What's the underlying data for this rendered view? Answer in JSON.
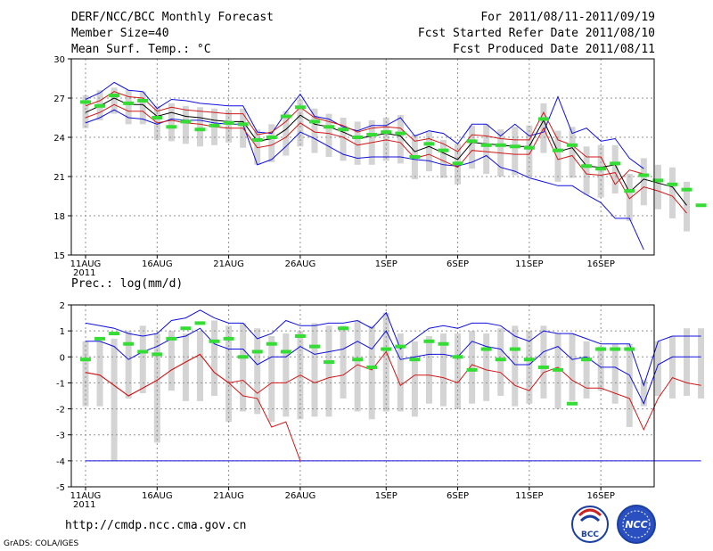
{
  "header": {
    "title": "DERF/NCC/BCC Monthly Forecast",
    "member_size": "Member Size=40",
    "variable": "Mean Surf. Temp.: °C",
    "period": "For 2011/08/11-2011/09/19",
    "start_date": "Fcst Started Refer Date 2011/08/10",
    "produced_date": "Fcst Produced Date 2011/08/11"
  },
  "colors": {
    "range_bar": "#d4d4d4",
    "ensemble_mean": "#000000",
    "spread": "#d01818",
    "extreme": "#1010dd",
    "observed": "#33dd33",
    "grid": "#909090",
    "axis": "#000000"
  },
  "footer": {
    "url": "http://cmdp.ncc.cma.gov.cn",
    "credit": "GrADS: COLA/IGES",
    "logo_bcc": "BCC",
    "logo_ncc": "NCC"
  },
  "chart_data": [
    {
      "type": "line",
      "title": "Mean Surf. Temp.: °C",
      "x_tick_labels": [
        "11AUG",
        "16AUG",
        "21AUG",
        "26AUG",
        "1SEP",
        "6SEP",
        "11SEP",
        "16SEP"
      ],
      "x_tick_sublabel": "2011",
      "ylim": [
        15,
        30
      ],
      "yticks": [
        15,
        18,
        21,
        24,
        27,
        30
      ],
      "grid": true,
      "series": [
        {
          "name": "max",
          "values": [
            25.1,
            25.5,
            26.1,
            25.5,
            25.4,
            25.0,
            25.4,
            25.3,
            25.3,
            25.1,
            25.0,
            25.0,
            21.9,
            22.3,
            23.3,
            24.4,
            23.9,
            23.3,
            22.7,
            22.4,
            22.5,
            22.5,
            22.5,
            22.3,
            22.2,
            21.9,
            21.8,
            22.1,
            22.6,
            21.7,
            21.4,
            20.9,
            20.6,
            20.3,
            20.3,
            19.6,
            19.0,
            17.8,
            17.8,
            15.4
          ]
        },
        {
          "name": "upper",
          "values": [
            26.9,
            27.4,
            28.2,
            27.6,
            27.5,
            26.2,
            26.9,
            26.8,
            26.6,
            26.5,
            26.4,
            26.4,
            24.4,
            24.3,
            25.9,
            27.3,
            25.6,
            25.4,
            24.8,
            24.5,
            24.9,
            24.9,
            25.5,
            24.1,
            24.5,
            24.3,
            23.5,
            25.0,
            25.0,
            24.1,
            25.0,
            24.1,
            24.4,
            27.1,
            24.3,
            24.7,
            23.7,
            23.9,
            22.4,
            21.6
          ]
        },
        {
          "name": "p_high",
          "values": [
            26.4,
            26.8,
            27.5,
            27.1,
            27.0,
            26.0,
            26.3,
            26.1,
            26.0,
            25.9,
            25.8,
            25.8,
            24.2,
            24.4,
            25.2,
            26.3,
            25.5,
            25.2,
            24.9,
            24.4,
            24.7,
            24.8,
            24.7,
            23.7,
            23.9,
            23.5,
            22.9,
            24.2,
            24.1,
            23.9,
            23.8,
            23.8,
            25.9,
            23.8,
            23.4,
            22.5,
            22.5,
            20.4,
            21.5,
            21.2
          ]
        },
        {
          "name": "mean",
          "values": [
            25.9,
            26.4,
            27.0,
            26.5,
            26.5,
            25.6,
            25.9,
            25.6,
            25.5,
            25.3,
            25.2,
            25.2,
            23.7,
            23.9,
            24.6,
            25.7,
            25.0,
            24.8,
            24.4,
            23.9,
            24.1,
            24.3,
            24.1,
            22.9,
            23.3,
            22.8,
            22.3,
            23.6,
            23.5,
            23.4,
            23.3,
            23.3,
            25.3,
            22.9,
            23.2,
            21.8,
            21.7,
            21.9,
            19.8,
            20.8,
            20.5,
            20.2,
            18.8
          ]
        },
        {
          "name": "p_low",
          "values": [
            25.5,
            25.9,
            26.5,
            26.0,
            26.0,
            25.1,
            25.3,
            25.1,
            25.0,
            24.8,
            24.7,
            24.7,
            23.2,
            23.4,
            24.0,
            25.1,
            24.4,
            24.3,
            24.0,
            23.4,
            23.6,
            23.8,
            23.6,
            22.4,
            22.7,
            22.2,
            21.7,
            23.0,
            22.9,
            22.8,
            22.7,
            22.7,
            24.7,
            22.3,
            22.6,
            21.2,
            21.1,
            21.3,
            19.3,
            20.2,
            19.9,
            19.5,
            18.2
          ]
        },
        {
          "name": "observed",
          "values": [
            26.7,
            26.4,
            27.2,
            26.6,
            26.8,
            25.5,
            24.8,
            25.2,
            24.6,
            24.9,
            25.1,
            25.0,
            23.8,
            24.0,
            25.6,
            26.3,
            25.2,
            24.8,
            24.6,
            24.0,
            24.2,
            24.4,
            24.3,
            22.5,
            23.5,
            23.0,
            22.0,
            23.7,
            23.4,
            23.4,
            23.3,
            23.2,
            25.4,
            23.0,
            23.4,
            21.8,
            21.6,
            22.0,
            19.9,
            21.1,
            20.7,
            20.4,
            20.0,
            18.8
          ]
        },
        {
          "name": "bar_max",
          "values": [
            27.2,
            27.6,
            27.8,
            27.6,
            27.5,
            26.4,
            26.6,
            26.4,
            26.3,
            26.2,
            26.1,
            26.2,
            24.6,
            25.0,
            26.0,
            26.9,
            26.2,
            25.8,
            25.5,
            25.2,
            25.3,
            25.5,
            25.7,
            24.2,
            24.4,
            23.8,
            23.5,
            24.9,
            25.0,
            24.6,
            24.8,
            24.9,
            26.6,
            24.5,
            24.8,
            23.3,
            23.4,
            23.4,
            21.2,
            22.4,
            21.9,
            21.7,
            20.6
          ]
        },
        {
          "name": "bar_min",
          "values": [
            24.7,
            25.3,
            25.8,
            25.0,
            25.0,
            23.8,
            23.7,
            23.5,
            23.3,
            23.4,
            23.6,
            23.2,
            21.9,
            22.1,
            22.6,
            23.3,
            22.8,
            22.5,
            22.2,
            21.9,
            21.9,
            22.2,
            22.0,
            20.8,
            21.4,
            20.9,
            20.4,
            21.6,
            21.2,
            21.0,
            21.1,
            21.0,
            22.8,
            20.6,
            20.9,
            19.6,
            19.4,
            19.7,
            17.6,
            18.8,
            18.5,
            17.8,
            16.8
          ]
        }
      ]
    },
    {
      "type": "line",
      "title": "Prec.: log(mm/d)",
      "x_tick_labels": [
        "11AUG",
        "16AUG",
        "21AUG",
        "26AUG",
        "1SEP",
        "6SEP",
        "11SEP",
        "16SEP"
      ],
      "x_tick_sublabel": "2011",
      "ylim": [
        -5,
        2
      ],
      "yticks": [
        -5,
        -4,
        -3,
        -2,
        -1,
        0,
        1,
        2
      ],
      "grid": true,
      "series": [
        {
          "name": "max",
          "values": [
            1.3,
            1.2,
            1.1,
            0.9,
            0.8,
            0.9,
            1.4,
            1.5,
            1.8,
            1.5,
            1.3,
            1.3,
            0.7,
            0.9,
            1.4,
            1.2,
            1.2,
            1.3,
            1.3,
            1.4,
            1.1,
            1.7,
            0.3,
            0.7,
            1.1,
            1.2,
            1.1,
            1.3,
            1.3,
            1.2,
            0.8,
            0.6,
            1.0,
            0.9,
            0.9,
            0.7,
            0.5,
            0.5,
            0.5,
            -1.1,
            0.6,
            0.8,
            0.8,
            0.8
          ]
        },
        {
          "name": "upper",
          "values": [
            0.6,
            0.6,
            0.4,
            -0.1,
            0.2,
            0.4,
            0.7,
            0.8,
            1.1,
            0.5,
            0.3,
            0.3,
            -0.3,
            0.0,
            0.0,
            0.4,
            0.1,
            0.2,
            0.3,
            0.6,
            0.3,
            1.0,
            -0.1,
            0.0,
            0.1,
            0.1,
            0.0,
            0.6,
            0.4,
            0.3,
            -0.3,
            -0.3,
            0.2,
            0.4,
            -0.1,
            0.0,
            -0.4,
            -0.4,
            -0.7,
            -1.8,
            -0.3,
            0.0,
            0.0,
            0.0
          ]
        },
        {
          "name": "p_low",
          "values": [
            -0.6,
            -0.7,
            -1.1,
            -1.5,
            -1.2,
            -0.9,
            -0.5,
            -0.2,
            0.1,
            -0.6,
            -1.0,
            -0.9,
            -1.4,
            -1.0,
            -1.0,
            -0.7,
            -1.0,
            -0.8,
            -0.7,
            -0.3,
            -0.5,
            0.2,
            -1.1,
            -0.7,
            -0.7,
            -0.8,
            -1.0,
            -0.3,
            -0.5,
            -0.6,
            -1.1,
            -1.3,
            -0.6,
            -0.4,
            -0.9,
            -1.2,
            -1.2,
            -1.4,
            -1.6,
            -2.8,
            -1.6,
            -0.8,
            -1.0,
            -1.1
          ]
        },
        {
          "name": "min",
          "values": [
            -4.0,
            -4.0,
            -4.0,
            -4.0,
            -4.0,
            -4.0,
            -4.0,
            -4.0,
            -4.0,
            -4.0,
            -4.0,
            -4.0,
            -4.0,
            -4.0,
            -4.0,
            -4.0,
            -4.0,
            -4.0,
            -4.0,
            -4.0,
            -4.0,
            -4.0,
            -4.0,
            -4.0,
            -4.0,
            -4.0,
            -4.0,
            -4.0,
            -4.0,
            -4.0,
            -4.0,
            -4.0,
            -4.0,
            -4.0,
            -4.0,
            -4.0,
            -4.0,
            -4.0,
            -4.0,
            -4.0,
            -4.0,
            -4.0,
            -4.0,
            -4.0
          ]
        },
        {
          "name": "lowest_red",
          "values": [
            -0.6,
            -0.7,
            -1.1,
            -1.5,
            -1.2,
            -0.9,
            -0.5,
            -0.2,
            0.1,
            -0.6,
            -1.0,
            -1.5,
            -1.6,
            -2.7,
            -2.5,
            -4.0
          ]
        },
        {
          "name": "observed",
          "values": [
            -0.1,
            0.7,
            0.9,
            0.5,
            0.2,
            0.1,
            0.7,
            1.1,
            1.3,
            0.6,
            0.7,
            0.0,
            0.2,
            0.5,
            0.2,
            0.8,
            0.4,
            -0.2,
            1.1,
            -0.1,
            -0.4,
            0.3,
            0.4,
            -0.1,
            0.6,
            0.5,
            0.0,
            -0.5,
            0.3,
            -0.1,
            0.3,
            -0.1,
            -0.4,
            -0.5,
            -1.8,
            -0.1,
            0.3,
            0.3,
            0.3
          ]
        },
        {
          "name": "bar_max",
          "values": [
            0.6,
            0.6,
            0.7,
            1.0,
            1.2,
            0.9,
            1.0,
            0.9,
            1.0,
            1.4,
            1.2,
            1.3,
            1.1,
            0.8,
            0.9,
            1.0,
            1.3,
            1.2,
            1.2,
            1.4,
            1.2,
            1.7,
            0.9,
            0.6,
            0.8,
            0.9,
            0.9,
            1.0,
            0.9,
            1.1,
            1.2,
            1.0,
            1.2,
            0.9,
            0.9,
            0.6,
            0.4,
            0.5,
            0.5,
            -0.9,
            0.6,
            0.8,
            1.1,
            1.1
          ]
        },
        {
          "name": "bar_min",
          "values": [
            -1.9,
            -1.9,
            -4.0,
            -1.6,
            -1.4,
            -3.3,
            -1.3,
            -1.7,
            -1.7,
            -1.5,
            -2.5,
            -2.1,
            -2.2,
            -2.5,
            -2.3,
            -2.4,
            -2.3,
            -2.3,
            -1.6,
            -2.1,
            -2.4,
            -2.1,
            -2.1,
            -2.3,
            -1.8,
            -1.9,
            -2.0,
            -1.8,
            -1.7,
            -1.5,
            -1.9,
            -1.8,
            -1.6,
            -2.0,
            -1.7,
            -1.6,
            -1.3,
            -1.8,
            -2.7,
            -1.9,
            -1.5,
            -1.6,
            -1.5,
            -1.6
          ]
        }
      ]
    }
  ]
}
